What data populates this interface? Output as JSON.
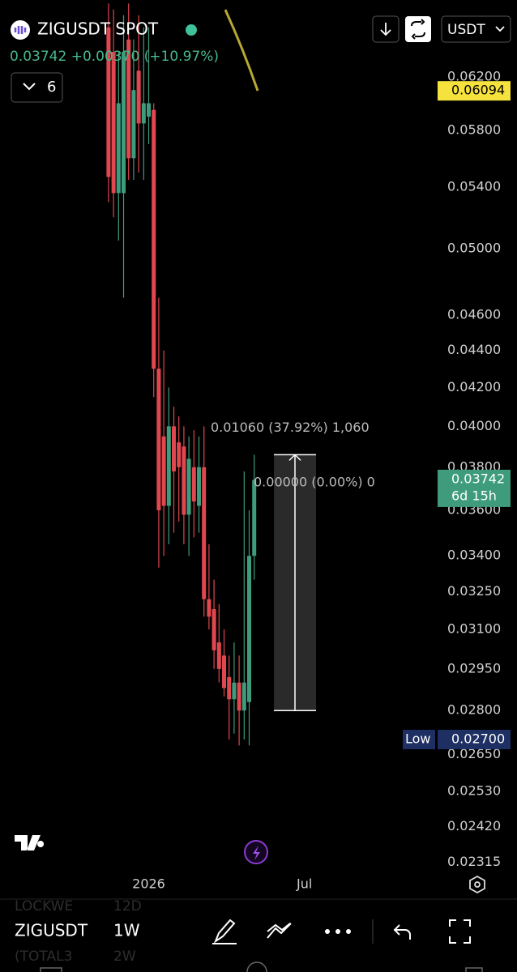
{
  "header": {
    "symbol": "ZIGUSDT SPOT",
    "price": "0.03742",
    "change": "+0.00370",
    "change_pct": "(+10.97%)",
    "indicators_count": "6",
    "quote": "USDT"
  },
  "chart_data": {
    "type": "candlestick",
    "log_scale": true,
    "ylim": [
      0.0229,
      0.0683
    ],
    "xlim": [
      -21.6,
      65.5
    ],
    "yticks": [
      {
        "value": 0.062,
        "label": "0.06200"
      },
      {
        "value": 0.058,
        "label": "0.05800"
      },
      {
        "value": 0.054,
        "label": "0.05400"
      },
      {
        "value": 0.05,
        "label": "0.05000"
      },
      {
        "value": 0.046,
        "label": "0.04600"
      },
      {
        "value": 0.044,
        "label": "0.04400"
      },
      {
        "value": 0.042,
        "label": "0.04200"
      },
      {
        "value": 0.04,
        "label": "0.04000"
      },
      {
        "value": 0.038,
        "label": "0.03800"
      },
      {
        "value": 0.036,
        "label": "0.03600"
      },
      {
        "value": 0.034,
        "label": "0.03400"
      },
      {
        "value": 0.0325,
        "label": "0.03250"
      },
      {
        "value": 0.031,
        "label": "0.03100"
      },
      {
        "value": 0.0295,
        "label": "0.02950"
      },
      {
        "value": 0.028,
        "label": "0.02800"
      },
      {
        "value": 0.0265,
        "label": "0.02650"
      },
      {
        "value": 0.0253,
        "label": "0.02530"
      },
      {
        "value": 0.0242,
        "label": "0.02420"
      },
      {
        "value": 0.02315,
        "label": "0.02315"
      }
    ],
    "xticks": [
      {
        "value": 8,
        "label": "2026"
      },
      {
        "value": 39,
        "label": "Jul"
      }
    ],
    "up_color": "#3e9c7c",
    "down_color": "#e0474f",
    "x": [
      0,
      1,
      2,
      3,
      4,
      5,
      6,
      7,
      8,
      9,
      10,
      11,
      12,
      13,
      14,
      15,
      16,
      17,
      18,
      19,
      20,
      21,
      22,
      23,
      24,
      25,
      26,
      27,
      28,
      29
    ],
    "open": [
      0.066,
      0.064,
      0.0536,
      0.0536,
      0.065,
      0.056,
      0.0625,
      0.0585,
      0.059,
      0.0595,
      0.043,
      0.0395,
      0.0362,
      0.04,
      0.0392,
      0.039,
      0.0358,
      0.038,
      0.0362,
      0.038,
      0.0322,
      0.0318,
      0.0305,
      0.03,
      0.0292,
      0.0284,
      0.029,
      0.028,
      0.0283,
      0.034
    ],
    "high": [
      0.068,
      0.0675,
      0.064,
      0.067,
      0.068,
      0.065,
      0.067,
      0.066,
      0.066,
      0.06,
      0.047,
      0.044,
      0.042,
      0.041,
      0.0405,
      0.04,
      0.0395,
      0.0398,
      0.0395,
      0.04,
      0.0345,
      0.033,
      0.032,
      0.031,
      0.03,
      0.0305,
      0.03,
      0.0378,
      0.036,
      0.0386
    ],
    "low": [
      0.053,
      0.052,
      0.0505,
      0.047,
      0.0545,
      0.0545,
      0.055,
      0.0545,
      0.057,
      0.0415,
      0.0335,
      0.034,
      0.0345,
      0.035,
      0.0355,
      0.0345,
      0.034,
      0.0348,
      0.035,
      0.0315,
      0.031,
      0.0295,
      0.029,
      0.0285,
      0.027,
      0.0272,
      0.0268,
      0.027,
      0.0268,
      0.033
    ],
    "close": [
      0.0547,
      0.0536,
      0.06,
      0.064,
      0.056,
      0.061,
      0.0585,
      0.06,
      0.06,
      0.043,
      0.036,
      0.0362,
      0.04,
      0.0378,
      0.038,
      0.0358,
      0.0384,
      0.0364,
      0.038,
      0.0322,
      0.0315,
      0.0302,
      0.0295,
      0.0288,
      0.0284,
      0.029,
      0.028,
      0.029,
      0.034,
      0.0374
    ],
    "markers": [
      {
        "value": 0.06094,
        "color": "#f5e23c",
        "text_color": "#000000"
      },
      {
        "value": 0.03742,
        "sub": "6d 15h",
        "color": "#3e9c7c",
        "text_color": "#ffffff"
      },
      {
        "value": 0.027,
        "label": "0.02700",
        "tag": "Low",
        "color": "#1e2f63",
        "text_color": "#ffffff"
      }
    ],
    "measure": {
      "from": 0.028,
      "to": 0.0386,
      "label": "0.01060 (37.92%) 1,060",
      "zero_label": "0.00000 (0.00%) 0"
    }
  },
  "toolbar": {
    "symbol": "ZIGUSDT",
    "interval": "1W",
    "ghost_rows": [
      [
        "LOCKWE",
        "12D"
      ],
      [
        "(TOTAL3",
        "2W"
      ]
    ]
  }
}
